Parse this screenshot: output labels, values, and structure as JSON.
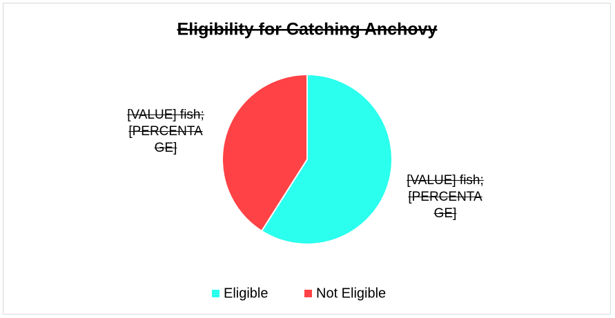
{
  "chart_data": {
    "type": "pie",
    "title": "Eligibility for Catching Anchovy",
    "categories": [
      "Eligible",
      "Not Eligible"
    ],
    "values": [
      59,
      41
    ],
    "colors": [
      "#2bffee",
      "#ff4245"
    ],
    "data_labels": [
      "[VALUE] fish; [PERCENTAGE]",
      "[VALUE] fish; [PERCENTAGE]"
    ],
    "legend": "bottom"
  }
}
